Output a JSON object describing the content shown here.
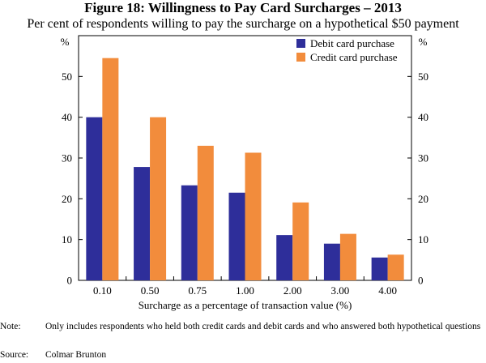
{
  "chart_data": {
    "type": "bar",
    "title": "Figure 18: Willingness to Pay Card Surcharges – 2013",
    "subtitle": "Per cent of respondents willing to pay the surcharge on a hypothetical $50 payment",
    "xlabel": "Surcharge as a percentage of transaction value (%)",
    "ylabel": "%",
    "ylabel_right": "%",
    "ylim": [
      0,
      60
    ],
    "yticks": [
      0,
      10,
      20,
      30,
      40,
      50
    ],
    "grid": false,
    "legend_position": "top-right",
    "categories": [
      "0.10",
      "0.50",
      "0.75",
      "1.00",
      "2.00",
      "3.00",
      "4.00"
    ],
    "series": [
      {
        "name": "Debit card purchase",
        "color": "#2e2e9a",
        "values": [
          40,
          27.8,
          23.3,
          21.5,
          11.1,
          9.0,
          5.6
        ]
      },
      {
        "name": "Credit card purchase",
        "color": "#f28c3c",
        "values": [
          54.5,
          40,
          33,
          31.3,
          19.1,
          11.4,
          6.3
        ]
      }
    ]
  },
  "note": {
    "label": "Note:",
    "text": "Only includes respondents who held both credit cards and debit cards and who answered both hypothetical questions"
  },
  "source": {
    "label": "Source:",
    "text": "Colmar Brunton"
  }
}
